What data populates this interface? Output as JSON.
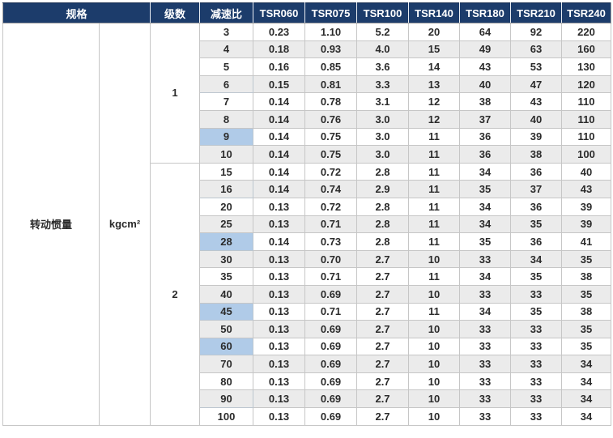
{
  "header": {
    "spec_label": "规格",
    "stages_label": "级数",
    "ratio_label": "减速比",
    "models": [
      "TSR060",
      "TSR075",
      "TSR100",
      "TSR140",
      "TSR180",
      "TSR210",
      "TSR240"
    ]
  },
  "spec": {
    "name": "转动惯量",
    "unit": "kgcm²"
  },
  "colors": {
    "header_bg": "#1c3c6b",
    "header_text": "#ffffff",
    "row_alt_bg": "#ebebeb",
    "highlight_cell_bg": "#b0cbe8",
    "grid_border": "#c6c6c6",
    "body_text": "#2b2b2b"
  },
  "groups": [
    {
      "stage": "1",
      "rows": [
        {
          "ratio": "3",
          "hl": false,
          "values": [
            "0.23",
            "1.10",
            "5.2",
            "20",
            "64",
            "92",
            "220"
          ]
        },
        {
          "ratio": "4",
          "hl": false,
          "values": [
            "0.18",
            "0.93",
            "4.0",
            "15",
            "49",
            "63",
            "160"
          ]
        },
        {
          "ratio": "5",
          "hl": false,
          "values": [
            "0.16",
            "0.85",
            "3.6",
            "14",
            "43",
            "53",
            "130"
          ]
        },
        {
          "ratio": "6",
          "hl": true,
          "values": [
            "0.15",
            "0.81",
            "3.3",
            "13",
            "40",
            "47",
            "120"
          ]
        },
        {
          "ratio": "7",
          "hl": false,
          "values": [
            "0.14",
            "0.78",
            "3.1",
            "12",
            "38",
            "43",
            "110"
          ]
        },
        {
          "ratio": "8",
          "hl": false,
          "values": [
            "0.14",
            "0.76",
            "3.0",
            "12",
            "37",
            "40",
            "110"
          ]
        },
        {
          "ratio": "9",
          "hl": true,
          "values": [
            "0.14",
            "0.75",
            "3.0",
            "11",
            "36",
            "39",
            "110"
          ]
        },
        {
          "ratio": "10",
          "hl": false,
          "values": [
            "0.14",
            "0.75",
            "3.0",
            "11",
            "36",
            "38",
            "100"
          ]
        }
      ]
    },
    {
      "stage": "2",
      "rows": [
        {
          "ratio": "15",
          "hl": false,
          "values": [
            "0.14",
            "0.72",
            "2.8",
            "11",
            "34",
            "36",
            "40"
          ]
        },
        {
          "ratio": "16",
          "hl": true,
          "values": [
            "0.14",
            "0.74",
            "2.9",
            "11",
            "35",
            "37",
            "43"
          ]
        },
        {
          "ratio": "20",
          "hl": false,
          "values": [
            "0.13",
            "0.72",
            "2.8",
            "11",
            "34",
            "36",
            "39"
          ]
        },
        {
          "ratio": "25",
          "hl": false,
          "values": [
            "0.13",
            "0.71",
            "2.8",
            "11",
            "34",
            "35",
            "39"
          ]
        },
        {
          "ratio": "28",
          "hl": true,
          "values": [
            "0.14",
            "0.73",
            "2.8",
            "11",
            "35",
            "36",
            "41"
          ]
        },
        {
          "ratio": "30",
          "hl": false,
          "values": [
            "0.13",
            "0.70",
            "2.7",
            "10",
            "33",
            "34",
            "35"
          ]
        },
        {
          "ratio": "35",
          "hl": false,
          "values": [
            "0.13",
            "0.71",
            "2.7",
            "11",
            "34",
            "35",
            "38"
          ]
        },
        {
          "ratio": "40",
          "hl": false,
          "values": [
            "0.13",
            "0.69",
            "2.7",
            "10",
            "33",
            "33",
            "35"
          ]
        },
        {
          "ratio": "45",
          "hl": true,
          "values": [
            "0.13",
            "0.71",
            "2.7",
            "11",
            "34",
            "35",
            "38"
          ]
        },
        {
          "ratio": "50",
          "hl": false,
          "values": [
            "0.13",
            "0.69",
            "2.7",
            "10",
            "33",
            "33",
            "35"
          ]
        },
        {
          "ratio": "60",
          "hl": true,
          "values": [
            "0.13",
            "0.69",
            "2.7",
            "10",
            "33",
            "33",
            "35"
          ]
        },
        {
          "ratio": "70",
          "hl": false,
          "values": [
            "0.13",
            "0.69",
            "2.7",
            "10",
            "33",
            "33",
            "34"
          ]
        },
        {
          "ratio": "80",
          "hl": false,
          "values": [
            "0.13",
            "0.69",
            "2.7",
            "10",
            "33",
            "33",
            "34"
          ]
        },
        {
          "ratio": "90",
          "hl": true,
          "values": [
            "0.13",
            "0.69",
            "2.7",
            "10",
            "33",
            "33",
            "34"
          ]
        },
        {
          "ratio": "100",
          "hl": false,
          "values": [
            "0.13",
            "0.69",
            "2.7",
            "10",
            "33",
            "33",
            "34"
          ]
        }
      ]
    }
  ]
}
